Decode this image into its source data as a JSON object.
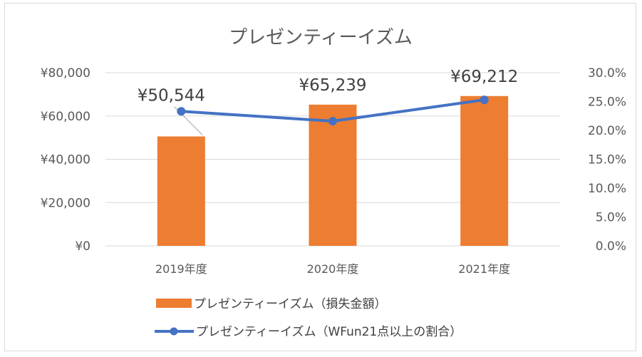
{
  "chart_data": {
    "type": "bar",
    "title": "プレゼンティーイズム",
    "categories": [
      "2019年度",
      "2020年度",
      "2021年度"
    ],
    "series": [
      {
        "name": "プレゼンティーイズム（損失金額）",
        "type": "bar",
        "axis": "left",
        "values": [
          50544,
          65239,
          69212
        ],
        "data_labels": [
          "¥50,544",
          "¥65,239",
          "¥69,212"
        ],
        "color": "#ED7D31"
      },
      {
        "name": "プレゼンティーイズム（WFun21点以上の割合）",
        "type": "line",
        "axis": "right",
        "values": [
          23.3,
          21.6,
          25.3
        ],
        "color": "#4472C4"
      }
    ],
    "y_left": {
      "ylim": [
        0,
        80000
      ],
      "ticks": [
        0,
        20000,
        40000,
        60000,
        80000
      ],
      "tick_labels": [
        "¥0",
        "¥20,000",
        "¥40,000",
        "¥60,000",
        "¥80,000"
      ]
    },
    "y_right": {
      "ylim": [
        0,
        30
      ],
      "ticks": [
        0,
        5,
        10,
        15,
        20,
        25,
        30
      ],
      "tick_labels": [
        "0.0%",
        "5.0%",
        "10.0%",
        "15.0%",
        "20.0%",
        "25.0%",
        "30.0%"
      ]
    },
    "grid": true,
    "legend_position": "bottom",
    "colors": {
      "gridline": "#D9D9D9",
      "text": "#595959"
    }
  }
}
